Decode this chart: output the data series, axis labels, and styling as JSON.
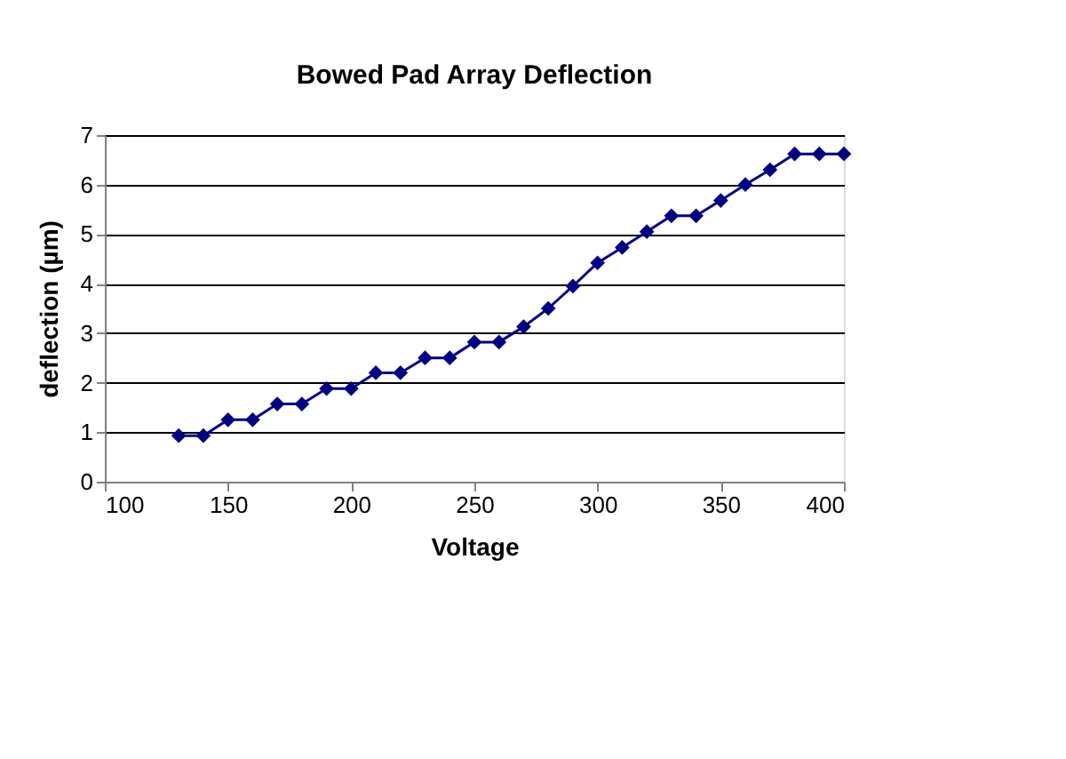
{
  "chart_data": {
    "type": "line",
    "title": "Bowed Pad Array Deflection",
    "xlabel": "Voltage",
    "ylabel": "deflection (µm)",
    "x": [
      130,
      140,
      150,
      160,
      170,
      180,
      190,
      200,
      210,
      220,
      230,
      240,
      250,
      260,
      270,
      280,
      290,
      300,
      310,
      320,
      330,
      340,
      350,
      360,
      370,
      380,
      390,
      400
    ],
    "series": [
      {
        "color": "#000080",
        "values": [
          0.93,
          0.93,
          1.25,
          1.25,
          1.57,
          1.57,
          1.88,
          1.88,
          2.2,
          2.2,
          2.5,
          2.5,
          2.82,
          2.82,
          3.13,
          3.5,
          3.95,
          4.42,
          4.73,
          5.05,
          5.37,
          5.37,
          5.68,
          6.0,
          6.3,
          6.62,
          6.62,
          6.62
        ]
      }
    ],
    "xlim": [
      100,
      400
    ],
    "xticks": [
      100,
      150,
      200,
      250,
      300,
      350,
      400
    ],
    "ylim": [
      0,
      7
    ],
    "yticks": [
      0,
      1,
      2,
      3,
      4,
      5,
      6,
      7
    ],
    "grid": "y",
    "marker": "diamond",
    "line_style": "solid",
    "legend": false
  }
}
